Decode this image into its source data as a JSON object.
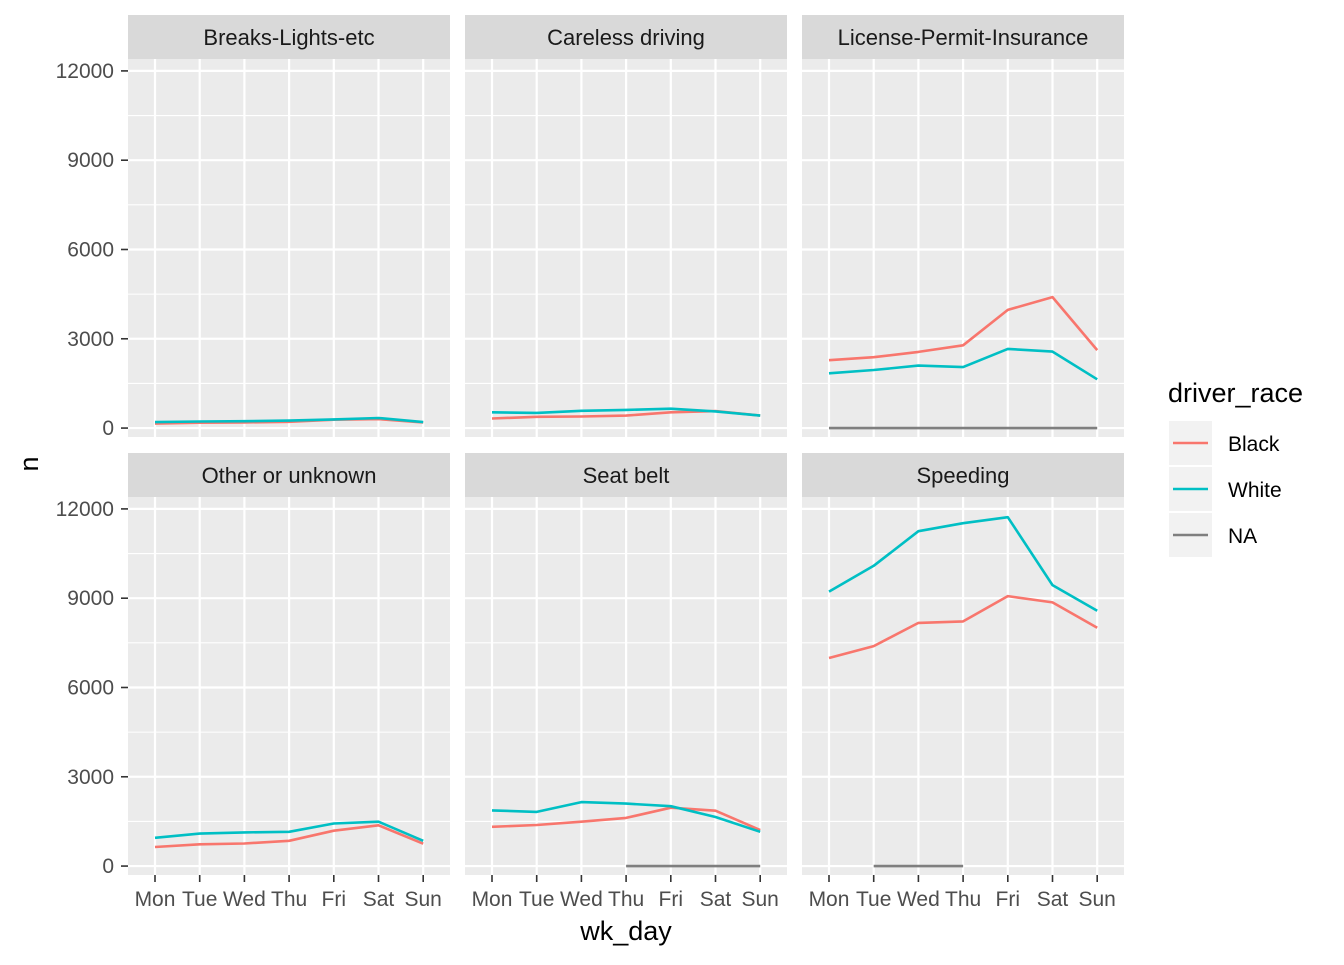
{
  "chart_data": {
    "type": "line",
    "layout": "facet_wrap",
    "xlabel": "wk_day",
    "ylabel": "n",
    "categories": [
      "Mon",
      "Tue",
      "Wed",
      "Thu",
      "Fri",
      "Sat",
      "Sun"
    ],
    "ylim": [
      -300,
      12400
    ],
    "yticks": [
      0,
      3000,
      6000,
      9000,
      12000
    ],
    "ytick_labels": [
      "0",
      "3000",
      "6000",
      "9000",
      "12000"
    ],
    "grid": true,
    "legend": {
      "title": "driver_race",
      "position": "right",
      "entries": [
        {
          "label": "Black",
          "color": "#F8766D"
        },
        {
          "label": "White",
          "color": "#00BFC4"
        },
        {
          "label": "NA",
          "color": "#7F7F7F"
        }
      ]
    },
    "panels": [
      {
        "title": "Breaks-Lights-etc",
        "series": [
          {
            "name": "Black",
            "color": "#F8766D",
            "values": [
              150,
              180,
              190,
              210,
              280,
              300,
              190
            ]
          },
          {
            "name": "White",
            "color": "#00BFC4",
            "values": [
              200,
              220,
              230,
              250,
              290,
              340,
              200
            ]
          }
        ]
      },
      {
        "title": "Careless driving",
        "series": [
          {
            "name": "Black",
            "color": "#F8766D",
            "values": [
              320,
              380,
              390,
              420,
              530,
              570,
              420
            ]
          },
          {
            "name": "White",
            "color": "#00BFC4",
            "values": [
              530,
              510,
              580,
              610,
              650,
              560,
              420
            ]
          }
        ]
      },
      {
        "title": "License-Permit-Insurance",
        "series": [
          {
            "name": "Black",
            "color": "#F8766D",
            "values": [
              2280,
              2380,
              2560,
              2780,
              3970,
              4400,
              2620
            ]
          },
          {
            "name": "White",
            "color": "#00BFC4",
            "values": [
              1840,
              1950,
              2100,
              2050,
              2660,
              2570,
              1640
            ]
          },
          {
            "name": "NA",
            "color": "#7F7F7F",
            "values": [
              0,
              0,
              0,
              0,
              0,
              0,
              0
            ]
          }
        ]
      },
      {
        "title": "Other or unknown",
        "series": [
          {
            "name": "Black",
            "color": "#F8766D",
            "values": [
              640,
              730,
              760,
              850,
              1190,
              1370,
              750
            ]
          },
          {
            "name": "White",
            "color": "#00BFC4",
            "values": [
              950,
              1090,
              1130,
              1150,
              1430,
              1490,
              850
            ]
          }
        ]
      },
      {
        "title": "Seat belt",
        "series": [
          {
            "name": "Black",
            "color": "#F8766D",
            "values": [
              1320,
              1380,
              1490,
              1620,
              1960,
              1860,
              1210
            ]
          },
          {
            "name": "White",
            "color": "#00BFC4",
            "values": [
              1870,
              1820,
              2150,
              2100,
              2010,
              1650,
              1150
            ]
          },
          {
            "name": "NA",
            "color": "#7F7F7F",
            "values": [
              null,
              null,
              null,
              0,
              0,
              0,
              0
            ]
          }
        ]
      },
      {
        "title": "Speeding",
        "series": [
          {
            "name": "Black",
            "color": "#F8766D",
            "values": [
              6990,
              7390,
              8170,
              8220,
              9070,
              8860,
              8010
            ]
          },
          {
            "name": "White",
            "color": "#00BFC4",
            "values": [
              9220,
              10090,
              11250,
              11520,
              11720,
              9440,
              8580
            ]
          },
          {
            "name": "NA",
            "color": "#7F7F7F",
            "values": [
              null,
              0,
              0,
              0,
              null,
              null,
              null
            ]
          }
        ]
      }
    ]
  }
}
